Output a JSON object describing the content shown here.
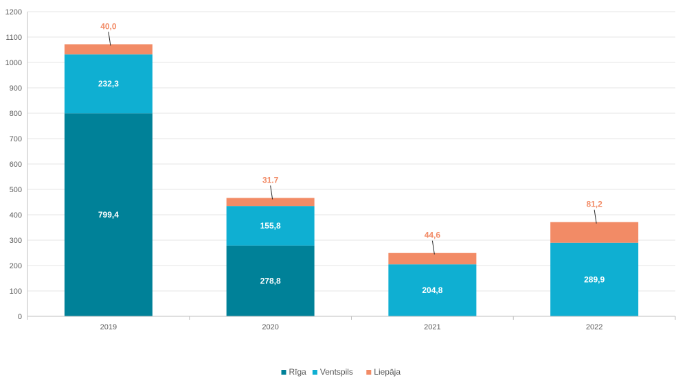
{
  "chart_data": {
    "type": "bar",
    "stacked": true,
    "categories": [
      "2019",
      "2020",
      "2021",
      "2022"
    ],
    "series": [
      {
        "name": "Rīga",
        "color": "#008198",
        "values": [
          799.4,
          278.8,
          null,
          null
        ],
        "labels": [
          "799,4",
          "278,8",
          "",
          ""
        ],
        "label_color": "#ffffff"
      },
      {
        "name": "Ventspils",
        "color": "#0fafd2",
        "values": [
          232.3,
          155.8,
          204.8,
          289.9
        ],
        "labels": [
          "232,3",
          "155,8",
          "204,8",
          "289,9"
        ],
        "label_color": "#ffffff"
      },
      {
        "name": "Liepāja",
        "color": "#f28b66",
        "values": [
          40.0,
          31.7,
          44.6,
          81.2
        ],
        "labels": [
          "40,0",
          "31.7",
          "44,6",
          "81,2"
        ],
        "label_color": "#f28b66"
      }
    ],
    "yticks": [
      "0",
      "100",
      "200",
      "300",
      "400",
      "500",
      "600",
      "700",
      "800",
      "900",
      "1000",
      "1100",
      "1200"
    ],
    "ylim": [
      0,
      1200
    ],
    "grid": true,
    "legend_position": "bottom"
  }
}
